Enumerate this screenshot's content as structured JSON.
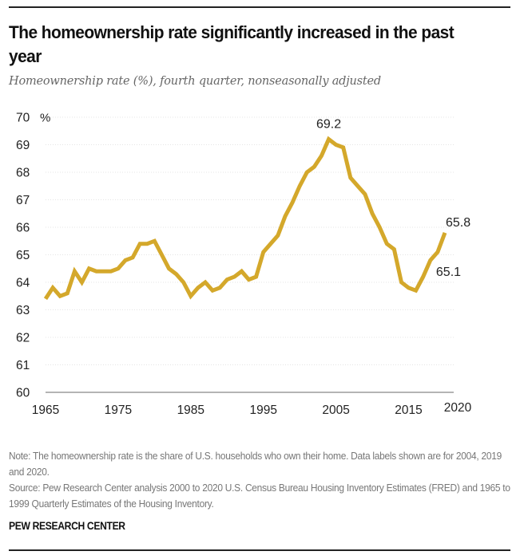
{
  "header": {
    "title": "The homeownership rate significantly increased in the past year",
    "subtitle": "Homeownership rate (%), fourth quarter, nonseasonally adjusted"
  },
  "chart_data": {
    "type": "line",
    "title": "The homeownership rate significantly increased in the past year",
    "subtitle": "Homeownership rate (%), fourth quarter, nonseasonally adjusted",
    "xlabel": "",
    "ylabel": "%",
    "xlim": [
      1965,
      2020
    ],
    "ylim": [
      60,
      70
    ],
    "x_ticks": [
      1965,
      1975,
      1985,
      1995,
      2005,
      2015,
      2020
    ],
    "x_tick_labels": [
      "1965",
      "1975",
      "1985",
      "1995",
      "2005",
      "2015",
      "2020"
    ],
    "y_ticks": [
      60,
      61,
      62,
      63,
      64,
      65,
      66,
      67,
      68,
      69,
      70
    ],
    "y_tick_labels": [
      "60",
      "61",
      "62",
      "63",
      "64",
      "65",
      "66",
      "67",
      "68",
      "69",
      "70"
    ],
    "y_unit_label": "%",
    "grid": true,
    "legend": "none",
    "series": [
      {
        "name": "Homeownership rate",
        "color": "#D4A82B",
        "x": [
          1965,
          1966,
          1967,
          1968,
          1969,
          1970,
          1971,
          1972,
          1973,
          1974,
          1975,
          1976,
          1977,
          1978,
          1979,
          1980,
          1981,
          1982,
          1983,
          1984,
          1985,
          1986,
          1987,
          1988,
          1989,
          1990,
          1991,
          1992,
          1993,
          1994,
          1995,
          1996,
          1997,
          1998,
          1999,
          2000,
          2001,
          2002,
          2003,
          2004,
          2005,
          2006,
          2007,
          2008,
          2009,
          2010,
          2011,
          2012,
          2013,
          2014,
          2015,
          2016,
          2017,
          2018,
          2019,
          2020
        ],
        "values": [
          63.4,
          63.8,
          63.5,
          63.6,
          64.4,
          64.0,
          64.5,
          64.4,
          64.4,
          64.4,
          64.5,
          64.8,
          64.9,
          65.4,
          65.4,
          65.5,
          65.0,
          64.5,
          64.3,
          64.0,
          63.5,
          63.8,
          64.0,
          63.7,
          63.8,
          64.1,
          64.2,
          64.4,
          64.1,
          64.2,
          65.1,
          65.4,
          65.7,
          66.4,
          66.9,
          67.5,
          68.0,
          68.2,
          68.6,
          69.2,
          69.0,
          68.9,
          67.8,
          67.5,
          67.2,
          66.5,
          66.0,
          65.4,
          65.2,
          64.0,
          63.8,
          63.7,
          64.2,
          64.8,
          65.1,
          65.8
        ]
      }
    ],
    "annotations": [
      {
        "x": 2004,
        "y": 69.2,
        "text": "69.2"
      },
      {
        "x": 2019,
        "y": 65.1,
        "text": "65.1"
      },
      {
        "x": 2020,
        "y": 65.8,
        "text": "65.8"
      }
    ]
  },
  "footer": {
    "note": "Note: The homeownership rate is the share of U.S. households who own their home. Data labels shown are for 2004, 2019 and 2020.",
    "source": "Source: Pew Research Center analysis 2000 to 2020 U.S. Census Bureau Housing Inventory Estimates (FRED) and 1965 to 1999 Quarterly Estimates of the Housing Inventory.",
    "brand": "PEW RESEARCH CENTER"
  }
}
